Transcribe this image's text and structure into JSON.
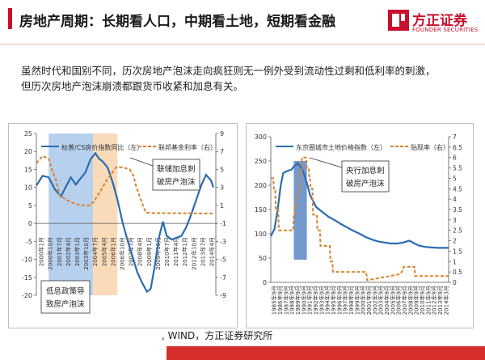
{
  "header": {
    "title": "房地产周期：长期看人口，中期看土地，短期看金融",
    "logo_cn": "方正证券",
    "logo_en": "FOUNDER SECURITIES"
  },
  "description": {
    "line1": "虽然时代和国别不同，历次房地产泡沫走向疯狂则无一例外受到流动性过剩和低利率的刺激，",
    "line2": "但历次房地产泡沫崩溃都跟货币收紧和加息有关。"
  },
  "source": ", WIND，方正证券研究所",
  "colors": {
    "accent_red": "#c8102e",
    "line_blue": "#2b6cb0",
    "line_orange": "#d9822b",
    "shade_blue": "#9fc0e8",
    "shade_orange": "#f7cfa3",
    "bar_blue": "#5b86c4"
  },
  "chart_data": [
    {
      "type": "line",
      "legend": [
        "标普/CS房价指数同比（左）",
        "联邦基金利率（右）"
      ],
      "y_left": {
        "ylim": [
          -20,
          25
        ],
        "ticks": [
          "25",
          "20",
          "15",
          "10",
          "5",
          "0",
          "-5",
          "-10",
          "-15",
          "-20"
        ]
      },
      "y_right": {
        "ylim": [
          -9,
          9
        ],
        "ticks": [
          "9",
          "7",
          "5",
          "3",
          "1",
          "-1",
          "-3",
          "-5",
          "-7",
          "-9"
        ]
      },
      "x_ticks": [
        "2000年1月",
        "2001年7月",
        "2003年1月",
        "2004年7月",
        "2006年1月",
        "2007年7月",
        "2009年1月",
        "2010年7月",
        "2012年1月",
        "2013年7月"
      ],
      "x_ticks_extra": [
        "2000年10月",
        "2002年4月",
        "2003年10月",
        "2005年4月",
        "2006年10月",
        "2008年4月",
        "2009年10月",
        "2011年4月",
        "2012年10月",
        "2014年4月"
      ],
      "x_range": [
        2000.0,
        2014.6
      ],
      "shaded": [
        {
          "from": 2001.0,
          "to": 2004.6,
          "color": "blue"
        },
        {
          "from": 2004.6,
          "to": 2006.6,
          "color": "orange"
        }
      ],
      "annotations": [
        "联储加息刺破房产泡沫",
        "低息政策导致房产泡沫"
      ],
      "series": [
        {
          "name": "标普/CS房价指数同比（左）",
          "axis": "left",
          "color": "blue",
          "x": [
            2000.0,
            2000.5,
            2001.0,
            2001.5,
            2002.0,
            2002.4,
            2002.8,
            2003.2,
            2003.6,
            2004.0,
            2004.4,
            2004.8,
            2005.1,
            2005.4,
            2005.8,
            2006.2,
            2006.6,
            2007.0,
            2007.4,
            2007.8,
            2008.2,
            2008.6,
            2009.0,
            2009.3,
            2009.6,
            2010.0,
            2010.3,
            2010.6,
            2011.0,
            2011.4,
            2011.8,
            2012.2,
            2012.6,
            2013.0,
            2013.4,
            2013.8,
            2014.2,
            2014.4
          ],
          "y": [
            10.5,
            13.2,
            12.8,
            9.5,
            7.5,
            10.2,
            12.8,
            10.8,
            12.5,
            14.2,
            17.8,
            19.5,
            18.0,
            17.2,
            15.5,
            11.5,
            6.5,
            0.5,
            -4.5,
            -9.0,
            -13.5,
            -16.5,
            -19.0,
            -18.2,
            -12.5,
            -3.5,
            0.5,
            -3.5,
            -4.5,
            -4.0,
            -3.5,
            -1.0,
            2.5,
            6.5,
            10.5,
            13.5,
            12.0,
            10.0
          ]
        },
        {
          "name": "联邦基金利率（右）",
          "axis": "right",
          "color": "orange",
          "x": [
            2000.0,
            2000.5,
            2001.0,
            2001.3,
            2001.6,
            2001.9,
            2002.3,
            2002.9,
            2003.6,
            2004.3,
            2004.6,
            2004.9,
            2005.3,
            2005.7,
            2006.1,
            2006.5,
            2007.0,
            2007.6,
            2007.9,
            2008.1,
            2008.4,
            2008.9,
            2009.2,
            2014.5
          ],
          "y": [
            5.7,
            6.5,
            6.2,
            4.8,
            3.8,
            2.1,
            1.75,
            1.3,
            1.0,
            1.0,
            1.3,
            1.9,
            2.8,
            3.8,
            4.5,
            5.25,
            5.25,
            5.0,
            4.3,
            3.2,
            2.0,
            0.2,
            0.15,
            0.1
          ]
        }
      ]
    },
    {
      "type": "line",
      "legend": [
        "东京圈城市土地价格指数（左）",
        "贴现率（右）"
      ],
      "y_left": {
        "ylim": [
          0,
          300
        ],
        "ticks": [
          "300",
          "250",
          "200",
          "150",
          "100",
          "50",
          "0"
        ]
      },
      "y_right": {
        "ylim": [
          0,
          7
        ],
        "ticks": [
          "7",
          "6.5",
          "6",
          "5.5",
          "5",
          "4.5",
          "4",
          "3.5",
          "3",
          "2.5",
          "2",
          "1.5",
          "1",
          "0.5",
          "0"
        ]
      },
      "x_ticks": [
        "1985年9月",
        "1986年9月",
        "1987年9月",
        "1988年9月",
        "1989年9月",
        "1990年9月",
        "1991年9月",
        "1992年9月",
        "1993年9月",
        "1994年9月",
        "1995年9月",
        "1996年9月",
        "1997年9月",
        "1998年9月",
        "1999年9月",
        "2000年9月",
        "2001年9月",
        "2002年9月",
        "2003年9月",
        "2004年9月",
        "2005年9月",
        "2006年9月",
        "2007年9月",
        "2008年9月",
        "2009年9月",
        "2010年9月",
        "2011年9月",
        "2012年9月",
        "2013年9月",
        "2014年3月"
      ],
      "x_range": [
        1985.7,
        2014.3
      ],
      "shaded": [
        {
          "from": 1989.4,
          "to": 1991.5,
          "color": "blue"
        }
      ],
      "annotations": [
        "央行加息刺破房产泡沫"
      ],
      "series": [
        {
          "name": "东京圈城市土地价格指数（左）",
          "axis": "left",
          "color": "blue",
          "x": [
            1985.7,
            1986.3,
            1986.8,
            1987.3,
            1987.7,
            1988.1,
            1988.5,
            1989.0,
            1989.5,
            1990.0,
            1990.5,
            1991.0,
            1991.5,
            1992.0,
            1993.0,
            1994.0,
            1995.0,
            1996.0,
            1997.0,
            1998.0,
            1999.0,
            2000.0,
            2001.0,
            2002.0,
            2003.0,
            2004.0,
            2005.0,
            2006.0,
            2007.0,
            2008.0,
            2008.8,
            2009.5,
            2010.5,
            2011.5,
            2012.5,
            2013.5,
            2014.3
          ],
          "y": [
            95,
            110,
            150,
            200,
            225,
            228,
            230,
            232,
            240,
            245,
            238,
            225,
            205,
            180,
            155,
            145,
            135,
            128,
            120,
            113,
            106,
            100,
            93,
            88,
            84,
            82,
            80,
            80,
            82,
            86,
            80,
            76,
            73,
            72,
            71,
            71,
            71
          ]
        },
        {
          "name": "贴现率（右）",
          "axis": "right",
          "color": "orange",
          "x": [
            1985.7,
            1986.1,
            1986.2,
            1986.4,
            1986.5,
            1986.9,
            1987.0,
            1989.3,
            1989.4,
            1989.6,
            1989.7,
            1989.9,
            1990.0,
            1990.3,
            1990.4,
            1990.6,
            1990.7,
            1991.4,
            1991.5,
            1991.8,
            1991.9,
            1992.0,
            1992.1,
            1992.4,
            1992.5,
            1993.1,
            1993.2,
            1993.6,
            1993.7,
            1995.2,
            1995.3,
            1995.6,
            1995.7,
            2001.0,
            2001.1,
            2001.2,
            2006.6,
            2007.1,
            2008.8,
            2008.9,
            2014.3
          ],
          "y": [
            5.0,
            5.0,
            4.5,
            4.5,
            3.5,
            3.5,
            2.5,
            2.5,
            3.25,
            3.25,
            3.75,
            3.75,
            4.25,
            4.25,
            5.25,
            5.25,
            6.0,
            6.0,
            5.5,
            5.5,
            5.0,
            5.0,
            4.5,
            4.5,
            3.25,
            3.25,
            2.5,
            2.5,
            1.75,
            1.75,
            1.0,
            1.0,
            0.5,
            0.5,
            0.35,
            0.1,
            0.4,
            0.75,
            0.75,
            0.3,
            0.3
          ]
        }
      ]
    }
  ]
}
